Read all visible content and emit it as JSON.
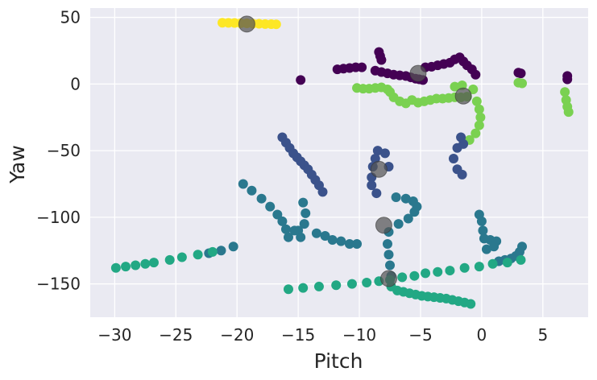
{
  "chart_data": {
    "type": "scatter",
    "title": "",
    "xlabel": "Pitch",
    "ylabel": "Yaw",
    "xlim": [
      -32,
      8.7
    ],
    "ylim": [
      -175,
      57
    ],
    "xticks": [
      -30,
      -25,
      -20,
      -15,
      -10,
      -5,
      0,
      5
    ],
    "yticks": [
      50,
      0,
      -50,
      -100,
      -150
    ],
    "grid": true,
    "background": "#eaeaf2",
    "centroid_color": "#555555",
    "clusters": [
      {
        "color": "#fde725",
        "points": [
          [
            -21.2,
            46
          ],
          [
            -20.7,
            45.9
          ],
          [
            -20.2,
            45.8
          ],
          [
            -19.7,
            45.6
          ],
          [
            -19.2,
            45.5
          ],
          [
            -18.7,
            45.3
          ],
          [
            -18.2,
            45.2
          ],
          [
            -17.7,
            45
          ],
          [
            -17.2,
            44.9
          ],
          [
            -16.8,
            44.8
          ]
        ],
        "centroid": [
          -19.2,
          45
        ]
      },
      {
        "color": "#440154",
        "points": [
          [
            -14.8,
            3
          ],
          [
            -11.8,
            11
          ],
          [
            -11.3,
            11.5
          ],
          [
            -10.8,
            12
          ],
          [
            -10.3,
            12.5
          ],
          [
            -9.8,
            12.5
          ],
          [
            -8.4,
            24
          ],
          [
            -8.3,
            21
          ],
          [
            -8.2,
            18
          ],
          [
            -8.7,
            10
          ],
          [
            -8.2,
            9
          ],
          [
            -7.7,
            8
          ],
          [
            -7.2,
            7
          ],
          [
            -6.7,
            6.5
          ],
          [
            -6.2,
            6
          ],
          [
            -5.8,
            5
          ],
          [
            -5.4,
            4
          ],
          [
            -5.1,
            3.5
          ],
          [
            -4.8,
            3
          ],
          [
            -4.6,
            12.5
          ],
          [
            -4.1,
            13
          ],
          [
            -3.6,
            14
          ],
          [
            -3.1,
            15
          ],
          [
            -2.6,
            16
          ],
          [
            -2.2,
            18.5
          ],
          [
            -1.8,
            20
          ],
          [
            -1.5,
            17
          ],
          [
            -1.2,
            14
          ],
          [
            -0.8,
            11
          ],
          [
            -0.5,
            7
          ],
          [
            3.0,
            8.5
          ],
          [
            3.2,
            8
          ],
          [
            7.0,
            6
          ],
          [
            7.0,
            3.5
          ]
        ],
        "centroid": [
          -5.2,
          8
        ]
      },
      {
        "color": "#7ad151",
        "points": [
          [
            -10.2,
            -3
          ],
          [
            -9.7,
            -3.5
          ],
          [
            -9.2,
            -3.5
          ],
          [
            -8.7,
            -3
          ],
          [
            -8.2,
            -2.5
          ],
          [
            -7.7,
            -4
          ],
          [
            -7.5,
            -6
          ],
          [
            -7.2,
            -10
          ],
          [
            -6.7,
            -13
          ],
          [
            -6.2,
            -14.5
          ],
          [
            -5.7,
            -12
          ],
          [
            -5.2,
            -14
          ],
          [
            -4.7,
            -13
          ],
          [
            -4.2,
            -12
          ],
          [
            -3.7,
            -11
          ],
          [
            -3.2,
            -11
          ],
          [
            -2.7,
            -10.5
          ],
          [
            -2.2,
            -10
          ],
          [
            -1.7,
            -10
          ],
          [
            -1.2,
            -9.5
          ],
          [
            -0.7,
            -4
          ],
          [
            -0.4,
            -13
          ],
          [
            -0.2,
            -19
          ],
          [
            -0.1,
            -25
          ],
          [
            -0.2,
            -31
          ],
          [
            -0.5,
            -37
          ],
          [
            -1.0,
            -42
          ],
          [
            -2.2,
            -2
          ],
          [
            -1.6,
            -1
          ],
          [
            3.0,
            1
          ],
          [
            3.3,
            0.5
          ],
          [
            6.8,
            -6
          ],
          [
            6.9,
            -12
          ],
          [
            7.0,
            -17
          ],
          [
            7.1,
            -21
          ]
        ],
        "centroid": [
          -1.5,
          -9
        ]
      },
      {
        "color": "#3b528b",
        "points": [
          [
            -16.3,
            -40
          ],
          [
            -16.0,
            -44
          ],
          [
            -15.7,
            -48
          ],
          [
            -15.4,
            -52
          ],
          [
            -15.1,
            -55
          ],
          [
            -14.8,
            -58
          ],
          [
            -14.5,
            -61
          ],
          [
            -14.2,
            -64
          ],
          [
            -13.9,
            -68
          ],
          [
            -13.6,
            -72
          ],
          [
            -13.3,
            -76
          ],
          [
            -13.0,
            -81
          ],
          [
            -8.5,
            -50
          ],
          [
            -8.7,
            -56
          ],
          [
            -8.9,
            -62
          ],
          [
            -9.0,
            -70
          ],
          [
            -9.0,
            -76
          ],
          [
            -8.6,
            -82
          ],
          [
            -7.9,
            -52
          ],
          [
            -7.6,
            -62
          ],
          [
            -1.7,
            -40
          ],
          [
            -2.0,
            -48
          ],
          [
            -2.3,
            -56
          ],
          [
            -2.0,
            -64
          ],
          [
            -1.6,
            -68
          ],
          [
            -1.5,
            -45
          ]
        ],
        "centroid": [
          -8.4,
          -64
        ]
      },
      {
        "color": "#2a788e",
        "points": [
          [
            -19.5,
            -75
          ],
          [
            -18.8,
            -80
          ],
          [
            -18.0,
            -86
          ],
          [
            -17.3,
            -92
          ],
          [
            -16.7,
            -98
          ],
          [
            -16.3,
            -103
          ],
          [
            -16.0,
            -109
          ],
          [
            -15.8,
            -115
          ],
          [
            -15.0,
            -110
          ],
          [
            -14.5,
            -105
          ],
          [
            -14.4,
            -97
          ],
          [
            -14.6,
            -89
          ],
          [
            -14.8,
            -115
          ],
          [
            -15.3,
            -110
          ],
          [
            -13.5,
            -112
          ],
          [
            -12.8,
            -114
          ],
          [
            -12.2,
            -117
          ],
          [
            -11.5,
            -118
          ],
          [
            -10.8,
            -120
          ],
          [
            -10.2,
            -120
          ],
          [
            -21.3,
            -125
          ],
          [
            -22.3,
            -127
          ],
          [
            -20.3,
            -122
          ],
          [
            -7.0,
            -85
          ],
          [
            -6.2,
            -86
          ],
          [
            -5.6,
            -88
          ],
          [
            -5.3,
            -92
          ],
          [
            -5.5,
            -96
          ],
          [
            -6.0,
            -101
          ],
          [
            -6.8,
            -105
          ],
          [
            -7.6,
            -111
          ],
          [
            -7.7,
            -120
          ],
          [
            -7.6,
            -128
          ],
          [
            -7.5,
            -136
          ],
          [
            -7.4,
            -144
          ],
          [
            -0.2,
            -98
          ],
          [
            0.0,
            -103
          ],
          [
            0.1,
            -110
          ],
          [
            0.2,
            -116
          ],
          [
            0.7,
            -117
          ],
          [
            1.2,
            -118
          ],
          [
            1.0,
            -122
          ],
          [
            0.4,
            -124
          ],
          [
            3.3,
            -122
          ],
          [
            3.1,
            -126
          ],
          [
            2.8,
            -129
          ],
          [
            2.4,
            -131
          ],
          [
            1.9,
            -132
          ],
          [
            1.4,
            -133
          ]
        ],
        "centroid": [
          -8.0,
          -106
        ]
      },
      {
        "color": "#22a884",
        "points": [
          [
            -29.9,
            -138
          ],
          [
            -29.1,
            -137
          ],
          [
            -28.3,
            -136
          ],
          [
            -27.5,
            -135
          ],
          [
            -26.8,
            -134
          ],
          [
            -25.5,
            -132
          ],
          [
            -24.5,
            -130
          ],
          [
            -23.2,
            -128
          ],
          [
            -22.0,
            -126
          ],
          [
            -15.8,
            -154
          ],
          [
            -14.6,
            -153
          ],
          [
            -13.3,
            -152
          ],
          [
            -11.9,
            -151
          ],
          [
            -10.6,
            -150
          ],
          [
            -9.4,
            -149
          ],
          [
            -8.4,
            -148
          ],
          [
            -7.5,
            -147
          ],
          [
            -6.5,
            -145
          ],
          [
            -5.5,
            -144
          ],
          [
            -4.6,
            -142
          ],
          [
            -3.6,
            -141
          ],
          [
            -2.6,
            -140
          ],
          [
            -1.4,
            -138
          ],
          [
            -0.2,
            -137
          ],
          [
            0.9,
            -135
          ],
          [
            2.1,
            -134
          ],
          [
            3.2,
            -132
          ],
          [
            -7.4,
            -152
          ],
          [
            -6.9,
            -155
          ],
          [
            -6.4,
            -156
          ],
          [
            -5.9,
            -157
          ],
          [
            -5.4,
            -158
          ],
          [
            -4.9,
            -159
          ],
          [
            -4.4,
            -159.5
          ],
          [
            -3.9,
            -160
          ],
          [
            -3.4,
            -160.5
          ],
          [
            -2.9,
            -161
          ],
          [
            -2.4,
            -162
          ],
          [
            -1.9,
            -163
          ],
          [
            -1.4,
            -164
          ],
          [
            -0.9,
            -165
          ]
        ],
        "centroid": [
          -7.6,
          -146
        ]
      }
    ]
  }
}
